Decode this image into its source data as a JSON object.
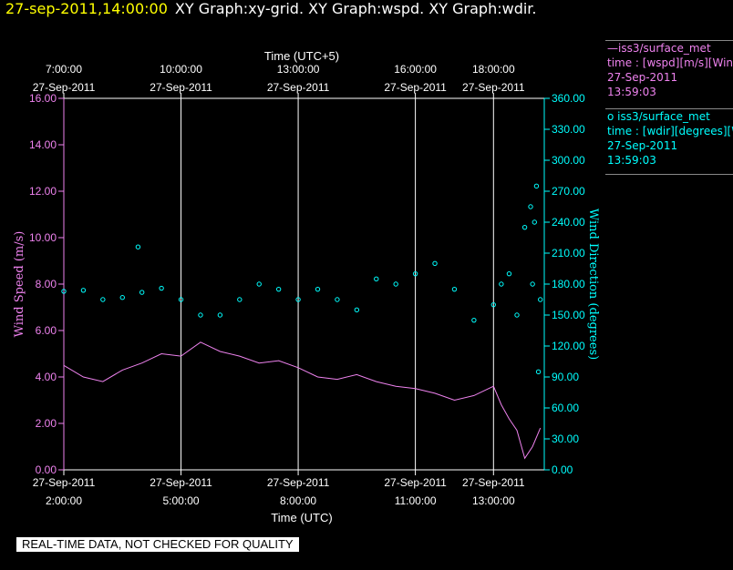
{
  "header": {
    "timestamp": "27-sep-2011,14:00:00",
    "graphs": "XY Graph:xy-grid.  XY Graph:wspd.  XY Graph:wdir."
  },
  "legend": {
    "wspd": {
      "line1": "—iss3/surface_met",
      "line2": "time : [wspd][m/s][Wind",
      "line3": "27-Sep-2011",
      "line4": "13:59:03"
    },
    "wdir": {
      "line1": "o  iss3/surface_met",
      "line2": "time : [wdir][degrees][Wind",
      "line3": "27-Sep-2011",
      "line4": "13:59:03"
    }
  },
  "notice": "REAL-TIME DATA, NOT CHECKED FOR QUALITY",
  "colors": {
    "speed": "#ee82ee",
    "dir": "#00ffff",
    "grid": "#ffffff",
    "timestamp": "#ffff00"
  },
  "chart_data": {
    "type": "line",
    "title": "",
    "top_axis": {
      "label": "Time (UTC+5)",
      "ticks": [
        {
          "t": 0,
          "time": "7:00:00",
          "date": "27-Sep-2011"
        },
        {
          "t": 3,
          "time": "10:00:00",
          "date": "27-Sep-2011"
        },
        {
          "t": 6,
          "time": "13:00:00",
          "date": "27-Sep-2011"
        },
        {
          "t": 9,
          "time": "16:00:00",
          "date": "27-Sep-2011"
        },
        {
          "t": 11,
          "time": "18:00:00",
          "date": "27-Sep-2011"
        }
      ]
    },
    "bottom_axis": {
      "label": "Time (UTC)",
      "ticks": [
        {
          "t": 0,
          "date": "27-Sep-2011",
          "time": "2:00:00"
        },
        {
          "t": 3,
          "date": "27-Sep-2011",
          "time": "5:00:00"
        },
        {
          "t": 6,
          "date": "27-Sep-2011",
          "time": "8:00:00"
        },
        {
          "t": 9,
          "date": "27-Sep-2011",
          "time": "11:00:00"
        },
        {
          "t": 11,
          "date": "27-Sep-2011",
          "time": "13:00:00"
        }
      ],
      "xlim": [
        0,
        12.3
      ]
    },
    "y_left": {
      "label": "Wind Speed (m/s)",
      "ticks": [
        "0.00",
        "2.00",
        "4.00",
        "6.00",
        "8.00",
        "10.00",
        "12.00",
        "14.00",
        "16.00"
      ],
      "ylim": [
        0,
        16
      ]
    },
    "y_right": {
      "label": "Wind Direction (degrees)",
      "ticks": [
        "0.00",
        "30.00",
        "60.00",
        "90.00",
        "120.00",
        "150.00",
        "180.00",
        "210.00",
        "240.00",
        "270.00",
        "300.00",
        "330.00",
        "360.00"
      ],
      "ylim": [
        0,
        360
      ]
    },
    "series": [
      {
        "name": "iss3/surface_met",
        "axis": "left",
        "style": "line",
        "x": [
          0.0,
          0.5,
          1.0,
          1.5,
          2.0,
          2.5,
          3.0,
          3.5,
          4.0,
          4.5,
          5.0,
          5.5,
          6.0,
          6.5,
          7.0,
          7.5,
          8.0,
          8.5,
          9.0,
          9.5,
          10.0,
          10.5,
          11.0,
          11.2,
          11.4,
          11.6,
          11.8,
          12.0,
          12.2
        ],
        "y": [
          4.5,
          4.0,
          3.8,
          4.3,
          4.6,
          5.0,
          4.9,
          5.5,
          5.1,
          4.9,
          4.6,
          4.7,
          4.4,
          4.0,
          3.9,
          4.1,
          3.8,
          3.6,
          3.5,
          3.3,
          3.0,
          3.2,
          3.6,
          2.8,
          2.2,
          1.7,
          0.5,
          1.0,
          1.8
        ]
      },
      {
        "name": "iss3/surface_met",
        "axis": "right",
        "style": "markers",
        "x": [
          0.0,
          0.5,
          1.0,
          1.5,
          2.0,
          2.5,
          3.0,
          3.5,
          4.0,
          4.5,
          5.0,
          5.5,
          6.0,
          6.5,
          7.0,
          7.5,
          8.0,
          8.5,
          9.0,
          9.5,
          10.0,
          10.5,
          11.0,
          11.2,
          11.4,
          11.6,
          11.8,
          12.0,
          12.2
        ],
        "y": [
          173,
          174,
          165,
          167,
          172,
          176,
          165,
          150,
          150,
          165,
          180,
          175,
          165,
          175,
          165,
          155,
          185,
          180,
          190,
          200,
          175,
          145,
          160,
          180,
          190,
          150,
          235,
          180,
          165
        ]
      }
    ],
    "direction_outliers": {
      "x": [
        1.9,
        12.05,
        11.95,
        12.1,
        12.15
      ],
      "y": [
        216,
        240,
        255,
        275,
        95
      ]
    },
    "grid": "vertical"
  }
}
